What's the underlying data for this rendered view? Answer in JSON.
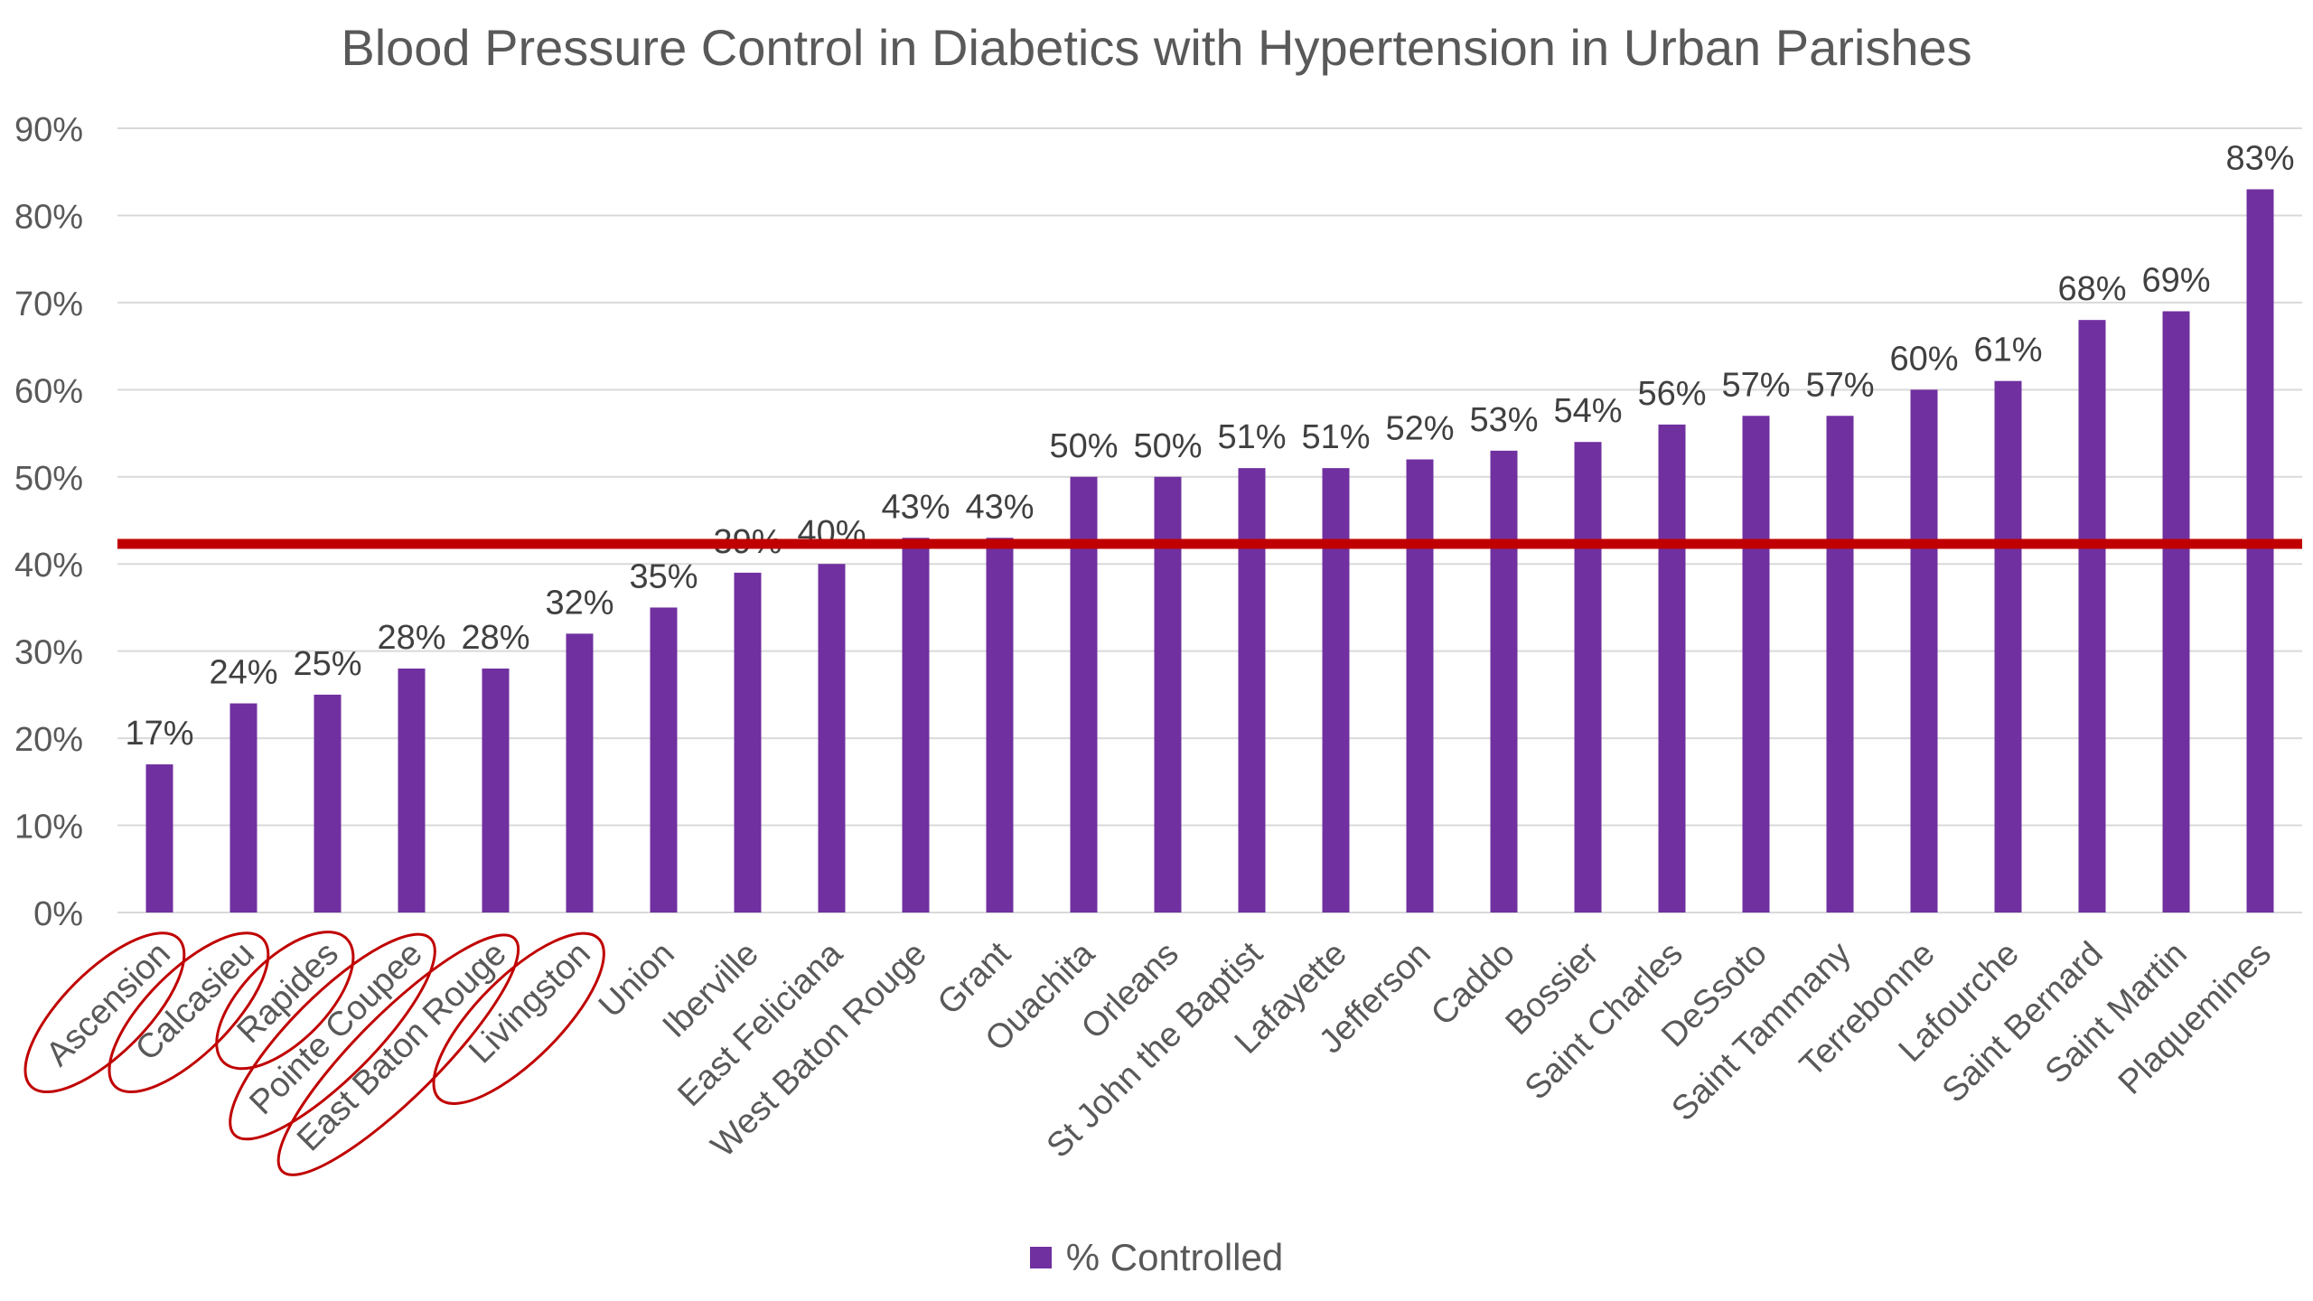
{
  "chart_data": {
    "type": "bar",
    "title": "Blood Pressure Control in Diabetics with Hypertension in Urban Parishes",
    "xlabel": "",
    "ylabel": "",
    "ylim": [
      0,
      90
    ],
    "yticks": [
      "0%",
      "10%",
      "20%",
      "30%",
      "40%",
      "50%",
      "60%",
      "70%",
      "80%",
      "90%"
    ],
    "categories": [
      "Ascension",
      "Calcasieu",
      "Rapides",
      "Pointe Coupee",
      "East Baton Rouge",
      "Livingston",
      "Union",
      "Iberville",
      "East Feliciana",
      "West Baton Rouge",
      "Grant",
      "Ouachita",
      "Orleans",
      "St John the Baptist",
      "Lafayette",
      "Jefferson",
      "Caddo",
      "Bossier",
      "Saint Charles",
      "DeSsoto",
      "Saint Tammany",
      "Terrebonne",
      "Lafourche",
      "Saint Bernard",
      "Saint Martin",
      "Plaquemines"
    ],
    "series": [
      {
        "name": "% Controlled",
        "color": "#7030a0",
        "values": [
          17,
          24,
          25,
          28,
          28,
          32,
          35,
          39,
          40,
          43,
          43,
          50,
          50,
          51,
          51,
          52,
          53,
          54,
          56,
          57,
          57,
          60,
          61,
          68,
          69,
          83
        ],
        "labels": [
          "17%",
          "24%",
          "25%",
          "28%",
          "28%",
          "32%",
          "35%",
          "39%",
          "40%",
          "43%",
          "43%",
          "50%",
          "50%",
          "51%",
          "51%",
          "52%",
          "53%",
          "54%",
          "56%",
          "57%",
          "57%",
          "60%",
          "61%",
          "68%",
          "69%",
          "83%"
        ]
      }
    ],
    "reference_line": {
      "value": 42.3,
      "color": "#c00000"
    },
    "circled_categories": [
      0,
      1,
      2,
      3,
      4,
      5
    ],
    "circle_color": "#c00000",
    "grid": true,
    "legend": "bottom"
  }
}
